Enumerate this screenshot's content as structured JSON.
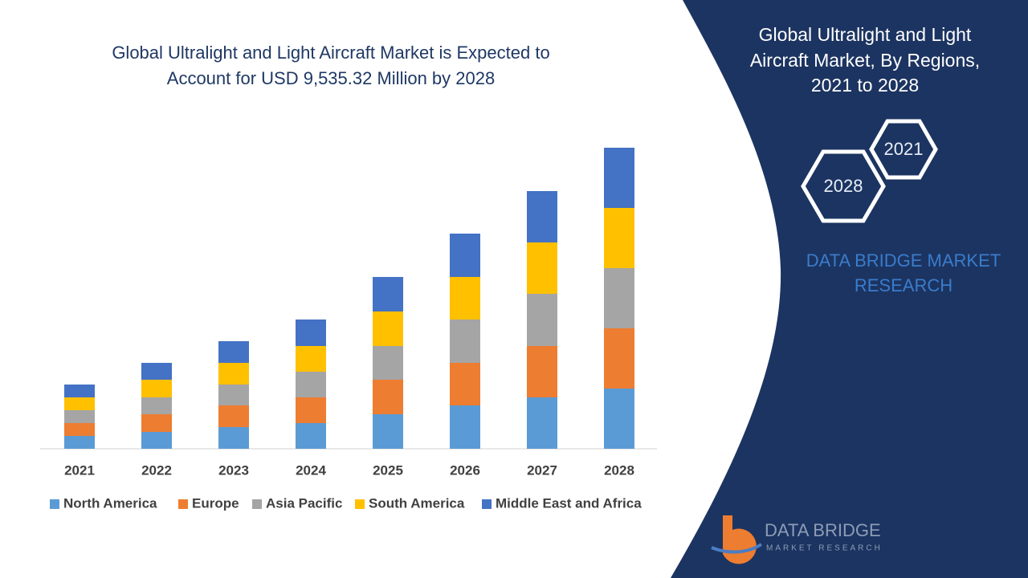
{
  "chart_data": {
    "type": "stacked-bar",
    "title": [
      "Global Ultralight and Light Aircraft Market is Expected to",
      "Account for USD 9,535.32 Million by 2028"
    ],
    "categories": [
      "2021",
      "2022",
      "2023",
      "2024",
      "2025",
      "2026",
      "2027",
      "2028"
    ],
    "series": [
      {
        "name": "North America",
        "color": "#5b9bd5",
        "values": [
          16,
          21,
          27,
          32,
          43,
          54,
          64,
          75
        ]
      },
      {
        "name": "Europe",
        "color": "#ed7d31",
        "values": [
          16,
          22,
          27,
          32,
          43,
          53,
          64,
          75
        ]
      },
      {
        "name": "Asia Pacific",
        "color": "#a5a5a5",
        "values": [
          16,
          21,
          26,
          32,
          42,
          54,
          65,
          75
        ]
      },
      {
        "name": "South America",
        "color": "#ffc000",
        "values": [
          16,
          22,
          27,
          32,
          43,
          53,
          64,
          75
        ]
      },
      {
        "name": "Middle East and Africa",
        "color": "#4472c4",
        "values": [
          16,
          21,
          27,
          33,
          43,
          54,
          64,
          75
        ]
      }
    ],
    "legend": "bottom"
  },
  "side_panel": {
    "title": [
      "Global Ultralight and Light",
      "Aircraft Market, By Regions,",
      "2021 to 2028"
    ],
    "hexagons": [
      "2021",
      "2028"
    ],
    "brand": [
      "DATA BRIDGE MARKET",
      "RESEARCH"
    ]
  },
  "logo": {
    "name": "DATA BRIDGE",
    "tagline": "MARKET RESEARCH"
  }
}
